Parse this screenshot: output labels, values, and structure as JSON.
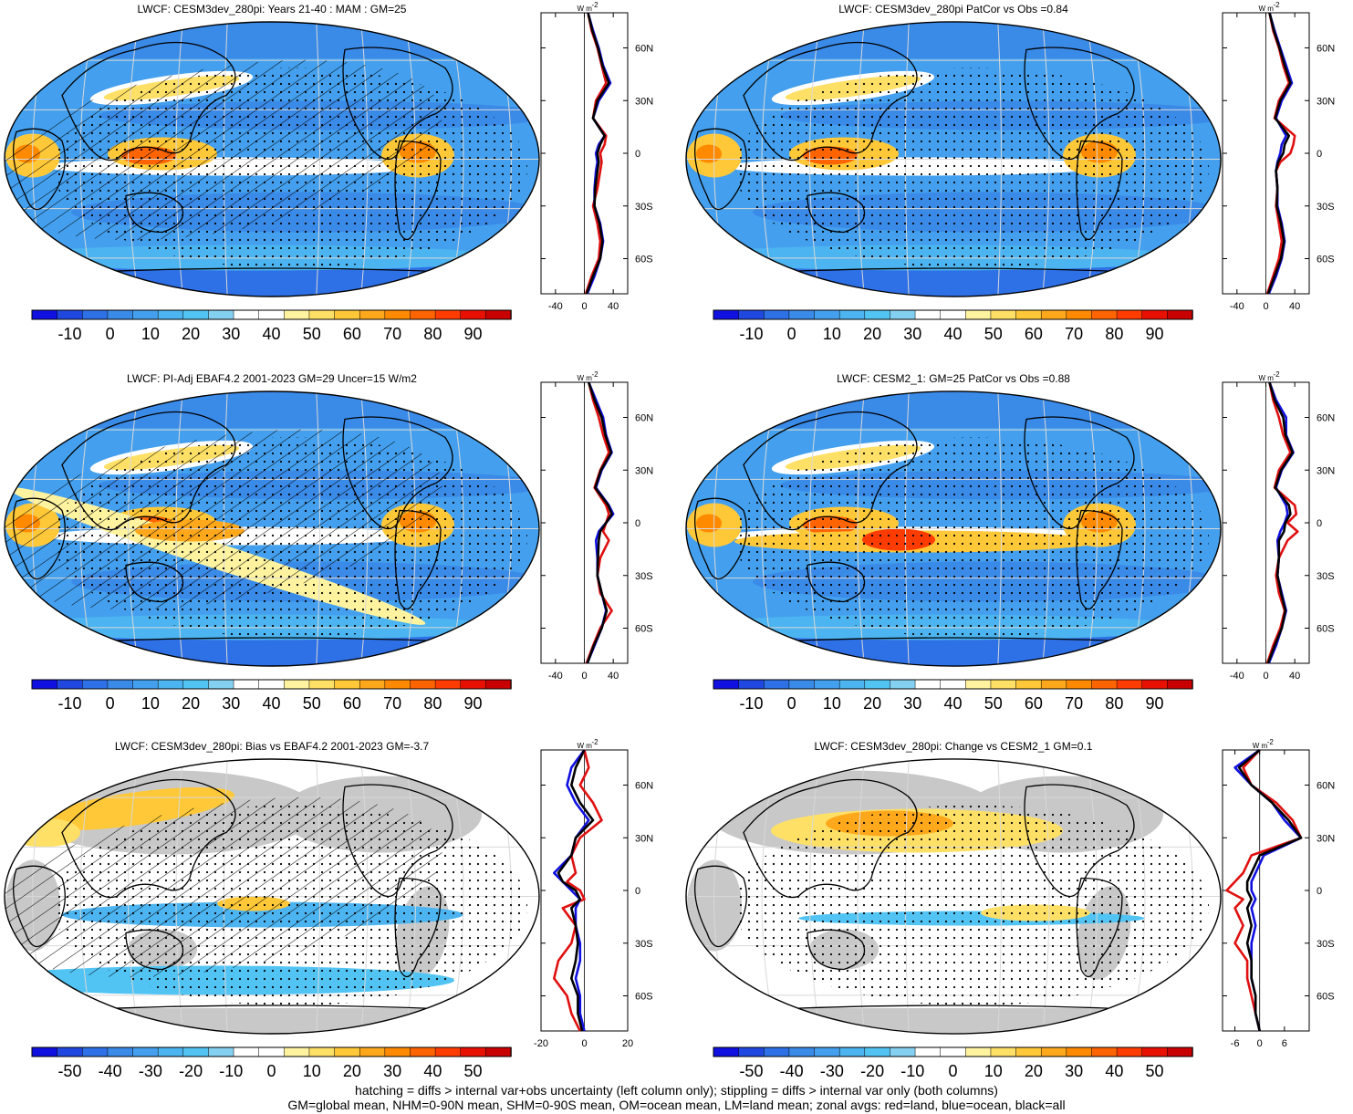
{
  "colors": {
    "scale": [
      "#1010e0",
      "#2048e0",
      "#2e70e6",
      "#3a8ae8",
      "#44a0ee",
      "#4cb4f0",
      "#52c4f4",
      "#84d0f0",
      "#ffffff",
      "#ffffff",
      "#fff3a0",
      "#ffe066",
      "#ffc838",
      "#ffa81c",
      "#ff8a00",
      "#ff6400",
      "#ff3c00",
      "#e81000",
      "#c80000"
    ],
    "land_diff": "#c8c8c8",
    "zonal_land": "#e01010",
    "zonal_ocean": "#1010e0",
    "zonal_all": "#000000"
  },
  "panels": [
    {
      "title": "LWCF: CESM3dev_280pi: Years 21-40 : MAM : GM=25",
      "kind": "abs",
      "hatch": true,
      "colorbar_labels": [
        "-10",
        "0",
        "10",
        "20",
        "30",
        "40",
        "50",
        "60",
        "70",
        "80",
        "90"
      ],
      "zonal_ticks": [
        "-40",
        "0",
        "40"
      ],
      "zonal_xlim": [
        -60,
        60
      ]
    },
    {
      "title": "LWCF: CESM3dev_280pi PatCor vs Obs =0.84",
      "kind": "abs",
      "hatch": false,
      "colorbar_labels": [
        "-10",
        "0",
        "10",
        "20",
        "30",
        "40",
        "50",
        "60",
        "70",
        "80",
        "90"
      ],
      "zonal_ticks": [
        "-40",
        "0",
        "40"
      ],
      "zonal_xlim": [
        -60,
        60
      ]
    },
    {
      "title": "LWCF: PI-Adj EBAF4.2 2001-2023 GM=29 Uncer=15 W/m2",
      "kind": "abs",
      "hatch": true,
      "colorbar_labels": [
        "-10",
        "0",
        "10",
        "20",
        "30",
        "40",
        "50",
        "60",
        "70",
        "80",
        "90"
      ],
      "zonal_ticks": [
        "-40",
        "0",
        "40"
      ],
      "zonal_xlim": [
        -60,
        60
      ]
    },
    {
      "title": "LWCF: CESM2_1: GM=25 PatCor vs Obs =0.88",
      "kind": "abs",
      "hatch": false,
      "colorbar_labels": [
        "-10",
        "0",
        "10",
        "20",
        "30",
        "40",
        "50",
        "60",
        "70",
        "80",
        "90"
      ],
      "zonal_ticks": [
        "-40",
        "0",
        "40"
      ],
      "zonal_xlim": [
        -60,
        60
      ]
    },
    {
      "title": "LWCF: CESM3dev_280pi: Bias vs EBAF4.2 2001-2023 GM=-3.7",
      "kind": "diff",
      "hatch": true,
      "colorbar_labels": [
        "-50",
        "-40",
        "-30",
        "-20",
        "-10",
        "0",
        "10",
        "20",
        "30",
        "40",
        "50"
      ],
      "zonal_ticks": [
        "-20",
        "0",
        "20"
      ],
      "zonal_xlim": [
        -20,
        20
      ]
    },
    {
      "title": "LWCF: CESM3dev_280pi: Change vs CESM2_1 GM=0.1",
      "kind": "diff",
      "hatch": false,
      "colorbar_labels": [
        "-50",
        "-40",
        "-30",
        "-20",
        "-10",
        "0",
        "10",
        "20",
        "30",
        "40",
        "50"
      ],
      "zonal_ticks": [
        "-6",
        "0",
        "6"
      ],
      "zonal_xlim": [
        -9,
        12
      ]
    }
  ],
  "lat_labels": [
    "60N",
    "30N",
    "0",
    "30S",
    "60S"
  ],
  "zonal_unit": "W m",
  "zonal_unit_sup": "-2",
  "footer": [
    "hatching = diffs > internal var+obs uncertainty (left column only); stippling = diffs > internal var only (both columns)",
    "GM=global mean, NHM=0-90N mean, SHM=0-90S mean, OM=ocean mean, LM=land mean; zonal avgs: red=land, blue=ocean, black=all"
  ],
  "chart_data": [
    {
      "type": "line",
      "title": "LWCF: CESM3dev_280pi: Years 21-40 : MAM : GM=25",
      "xlim": [
        -60,
        60
      ],
      "lat": [
        80,
        70,
        60,
        50,
        40,
        30,
        20,
        10,
        5,
        0,
        -5,
        -10,
        -20,
        -30,
        -40,
        -50,
        -60,
        -70,
        -80
      ],
      "series": [
        {
          "name": "land",
          "values": [
            5,
            10,
            18,
            24,
            30,
            16,
            12,
            30,
            28,
            22,
            24,
            22,
            18,
            12,
            18,
            22,
            20,
            10,
            2
          ]
        },
        {
          "name": "ocean",
          "values": [
            5,
            12,
            20,
            26,
            36,
            20,
            12,
            28,
            20,
            16,
            18,
            16,
            14,
            14,
            22,
            26,
            22,
            14,
            4
          ]
        },
        {
          "name": "all",
          "values": [
            5,
            11,
            19,
            25,
            34,
            18,
            12,
            28,
            22,
            18,
            20,
            18,
            15,
            14,
            21,
            25,
            22,
            12,
            3
          ]
        }
      ]
    },
    {
      "type": "line",
      "title": "LWCF: CESM3dev_280pi PatCor vs Obs =0.84",
      "xlim": [
        -60,
        60
      ],
      "lat": [
        80,
        70,
        60,
        50,
        40,
        30,
        20,
        10,
        5,
        0,
        -5,
        -10,
        -20,
        -30,
        -40,
        -50,
        -60,
        -70,
        -80
      ],
      "series": [
        {
          "name": "land",
          "values": [
            5,
            10,
            18,
            24,
            32,
            18,
            12,
            40,
            38,
            34,
            20,
            14,
            16,
            14,
            18,
            22,
            18,
            10,
            2
          ]
        },
        {
          "name": "ocean",
          "values": [
            5,
            12,
            20,
            28,
            36,
            22,
            14,
            28,
            22,
            20,
            16,
            14,
            16,
            16,
            22,
            26,
            22,
            14,
            4
          ]
        },
        {
          "name": "all",
          "values": [
            5,
            11,
            19,
            26,
            34,
            20,
            13,
            32,
            26,
            24,
            17,
            14,
            16,
            15,
            21,
            25,
            21,
            12,
            3
          ]
        }
      ]
    },
    {
      "type": "line",
      "title": "LWCF: PI-Adj EBAF4.2 2001-2023 GM=29 Uncer=15 W/m2",
      "xlim": [
        -60,
        60
      ],
      "lat": [
        80,
        70,
        60,
        50,
        40,
        30,
        20,
        10,
        5,
        0,
        -5,
        -10,
        -20,
        -30,
        -40,
        -50,
        -60,
        -70,
        -80
      ],
      "series": [
        {
          "name": "land",
          "values": [
            6,
            12,
            20,
            26,
            34,
            22,
            14,
            30,
            34,
            30,
            26,
            34,
            22,
            18,
            22,
            38,
            22,
            12,
            3
          ]
        },
        {
          "name": "ocean",
          "values": [
            6,
            16,
            26,
            30,
            38,
            24,
            16,
            34,
            40,
            30,
            20,
            16,
            18,
            18,
            24,
            30,
            24,
            14,
            4
          ]
        },
        {
          "name": "all",
          "values": [
            6,
            14,
            24,
            29,
            37,
            23,
            15,
            33,
            38,
            30,
            22,
            20,
            19,
            18,
            24,
            31,
            24,
            13,
            4
          ]
        }
      ]
    },
    {
      "type": "line",
      "title": "LWCF: CESM2_1: GM=25 PatCor vs Obs =0.88",
      "xlim": [
        -60,
        60
      ],
      "lat": [
        80,
        70,
        60,
        50,
        40,
        30,
        20,
        10,
        5,
        0,
        -5,
        -10,
        -20,
        -30,
        -40,
        -50,
        -60,
        -70,
        -80
      ],
      "series": [
        {
          "name": "land",
          "values": [
            5,
            10,
            18,
            24,
            34,
            18,
            12,
            40,
            42,
            30,
            44,
            30,
            18,
            14,
            18,
            26,
            20,
            10,
            2
          ]
        },
        {
          "name": "ocean",
          "values": [
            5,
            14,
            28,
            28,
            38,
            22,
            14,
            28,
            30,
            26,
            20,
            16,
            18,
            16,
            22,
            28,
            22,
            14,
            4
          ]
        },
        {
          "name": "all",
          "values": [
            5,
            12,
            24,
            27,
            37,
            21,
            13,
            32,
            34,
            27,
            25,
            18,
            18,
            16,
            21,
            27,
            22,
            12,
            3
          ]
        }
      ]
    },
    {
      "type": "line",
      "title": "LWCF: CESM3dev_280pi: Bias vs EBAF4.2 2001-2023 GM=-3.7",
      "xlim": [
        -20,
        20
      ],
      "lat": [
        80,
        70,
        60,
        50,
        40,
        30,
        20,
        10,
        5,
        0,
        -5,
        -10,
        -20,
        -30,
        -40,
        -50,
        -60,
        -70,
        -80
      ],
      "series": [
        {
          "name": "land",
          "values": [
            0,
            2,
            -2,
            4,
            8,
            -2,
            -6,
            -4,
            -8,
            -2,
            0,
            -10,
            -4,
            -6,
            -12,
            -14,
            -8,
            -6,
            -2
          ]
        },
        {
          "name": "ocean",
          "values": [
            0,
            -6,
            -8,
            -4,
            2,
            -4,
            -6,
            -14,
            -10,
            -6,
            -2,
            -4,
            -4,
            -2,
            -2,
            -4,
            -2,
            -2,
            0
          ]
        },
        {
          "name": "all",
          "values": [
            0,
            -4,
            -6,
            -2,
            4,
            -4,
            -6,
            -12,
            -10,
            -4,
            -2,
            -6,
            -4,
            -3,
            -4,
            -6,
            -3,
            -3,
            -1
          ]
        }
      ]
    },
    {
      "type": "line",
      "title": "LWCF: CESM3dev_280pi: Change vs CESM2_1 GM=0.1",
      "xlim": [
        -9,
        12
      ],
      "lat": [
        80,
        70,
        60,
        50,
        40,
        30,
        20,
        10,
        5,
        0,
        -5,
        -10,
        -20,
        -30,
        -40,
        -50,
        -60,
        -70,
        -80
      ],
      "series": [
        {
          "name": "land",
          "values": [
            0,
            -4,
            -2,
            4,
            8,
            10,
            -2,
            -4,
            -6,
            -8,
            -4,
            -6,
            -4,
            -6,
            -3,
            -3,
            -2,
            -1,
            0
          ]
        },
        {
          "name": "ocean",
          "values": [
            0,
            -6,
            -2,
            3,
            6,
            10,
            1,
            -1,
            -2,
            -2,
            -1,
            -2,
            -1,
            -2,
            -2,
            -2,
            -1,
            -1,
            0
          ]
        },
        {
          "name": "all",
          "values": [
            0,
            -5,
            -2,
            3,
            7,
            10,
            0,
            -2,
            -3,
            -3,
            -2,
            -3,
            -2,
            -3,
            -2,
            -2,
            -1,
            -1,
            0
          ]
        }
      ]
    }
  ]
}
